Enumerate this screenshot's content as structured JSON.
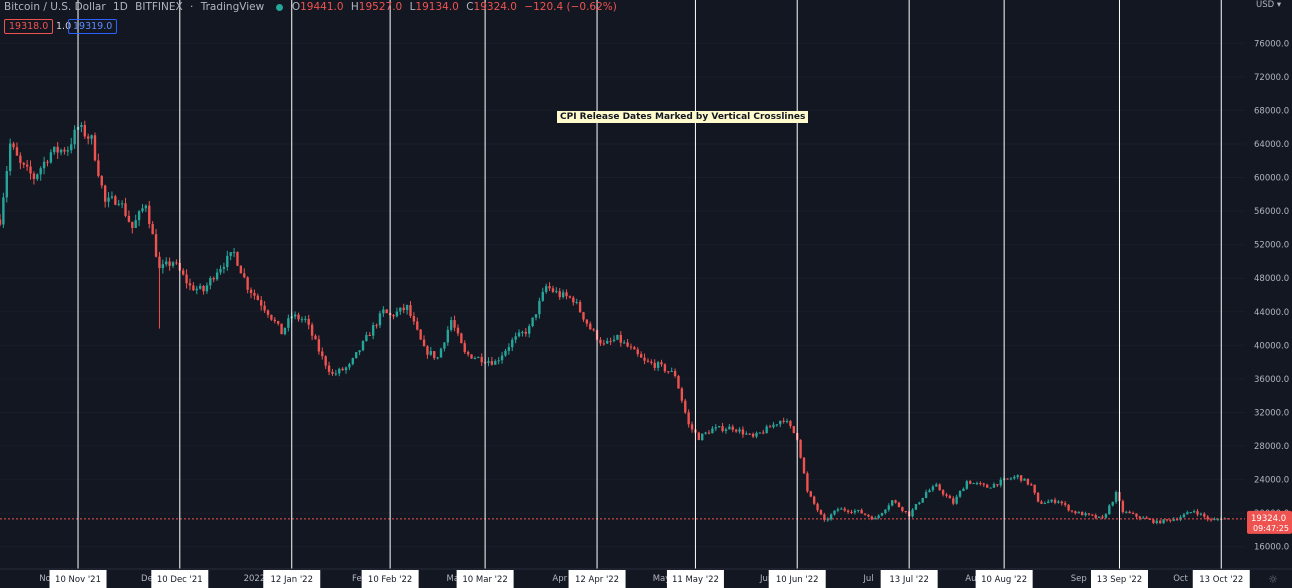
{
  "header": {
    "symbol": "Bitcoin / U.S. Dollar",
    "interval": "1D",
    "exchange": "BITFINEX",
    "source": "TradingView",
    "o_label": "O",
    "o_value": "19441.0",
    "h_label": "H",
    "h_value": "19527.0",
    "l_label": "L",
    "l_value": "19134.0",
    "c_label": "C",
    "c_value": "19324.0",
    "change": "−120.4 (−0.62%)",
    "bid_badge": "19318.0",
    "size_badge": "1.0",
    "ask_badge": "19319.0"
  },
  "colors": {
    "background": "#131722",
    "up": "#26a69a",
    "down": "#ef5350",
    "crossline": "#ffffff",
    "price_line": "#ef5350",
    "axis_text": "#b2b5be"
  },
  "chart_data": {
    "type": "candlestick",
    "currency": "USD",
    "price_scale": {
      "min": 14000,
      "max": 78000,
      "ticks": [
        16000,
        20000,
        24000,
        28000,
        32000,
        36000,
        40000,
        44000,
        48000,
        52000,
        56000,
        60000,
        64000,
        68000,
        72000,
        76000
      ],
      "tick_labels": [
        "16000.0",
        "20000.0",
        "24000.0",
        "28000.0",
        "32000.0",
        "36000.0",
        "40000.0",
        "44000.0",
        "48000.0",
        "52000.0",
        "56000.0",
        "60000.0",
        "64000.0",
        "68000.0",
        "72000.0",
        "76000.0"
      ]
    },
    "time_scale": {
      "start": "2021-10-18",
      "end": "2022-10-20"
    },
    "time_ticks": [
      {
        "date": "2021-11-01",
        "label": "Nov"
      },
      {
        "date": "2021-12-01",
        "label": "Dec"
      },
      {
        "date": "2022-01-01",
        "label": "2022"
      },
      {
        "date": "2022-02-01",
        "label": "Feb"
      },
      {
        "date": "2022-03-01",
        "label": "Mar"
      },
      {
        "date": "2022-04-01",
        "label": "Apr"
      },
      {
        "date": "2022-05-01",
        "label": "May"
      },
      {
        "date": "2022-06-01",
        "label": "Jun"
      },
      {
        "date": "2022-07-01",
        "label": "Jul"
      },
      {
        "date": "2022-08-01",
        "label": "Aug"
      },
      {
        "date": "2022-09-01",
        "label": "Sep"
      },
      {
        "date": "2022-10-01",
        "label": "Oct"
      }
    ],
    "crosslines": [
      {
        "date": "2021-11-10",
        "label": "10 Nov '21"
      },
      {
        "date": "2021-12-10",
        "label": "10 Dec '21"
      },
      {
        "date": "2022-01-12",
        "label": "12 Jan '22"
      },
      {
        "date": "2022-02-10",
        "label": "10 Feb '22"
      },
      {
        "date": "2022-03-10",
        "label": "10 Mar '22"
      },
      {
        "date": "2022-04-12",
        "label": "12 Apr '22"
      },
      {
        "date": "2022-05-11",
        "label": "11 May '22"
      },
      {
        "date": "2022-06-10",
        "label": "10 Jun '22"
      },
      {
        "date": "2022-07-13",
        "label": "13 Jul '22"
      },
      {
        "date": "2022-08-10",
        "label": "10 Aug '22"
      },
      {
        "date": "2022-09-13",
        "label": "13 Sep '22"
      },
      {
        "date": "2022-10-13",
        "label": "13 Oct '22"
      }
    ],
    "annotation": "CPI Release Dates Marked by Vertical Crosslines",
    "last_price": "19324.0",
    "countdown": "09:47:25",
    "price_keypoints": [
      [
        "2021-10-18",
        55000
      ],
      [
        "2021-10-21",
        64000
      ],
      [
        "2021-10-24",
        61500
      ],
      [
        "2021-10-28",
        60000
      ],
      [
        "2021-11-02",
        63000
      ],
      [
        "2021-11-07",
        63500
      ],
      [
        "2021-11-10",
        66000
      ],
      [
        "2021-11-14",
        64500
      ],
      [
        "2021-11-18",
        57000
      ],
      [
        "2021-11-22",
        57500
      ],
      [
        "2021-11-26",
        54000
      ],
      [
        "2021-11-30",
        57000
      ],
      [
        "2021-12-04",
        49000
      ],
      [
        "2021-12-08",
        50000
      ],
      [
        "2021-12-13",
        47000
      ],
      [
        "2021-12-17",
        46500
      ],
      [
        "2021-12-21",
        49000
      ],
      [
        "2021-12-26",
        51000
      ],
      [
        "2021-12-30",
        47000
      ],
      [
        "2022-01-05",
        44000
      ],
      [
        "2022-01-09",
        41500
      ],
      [
        "2022-01-12",
        43500
      ],
      [
        "2022-01-16",
        43000
      ],
      [
        "2022-01-21",
        38500
      ],
      [
        "2022-01-24",
        36500
      ],
      [
        "2022-01-29",
        37500
      ],
      [
        "2022-02-04",
        41500
      ],
      [
        "2022-02-08",
        44000
      ],
      [
        "2022-02-10",
        43500
      ],
      [
        "2022-02-15",
        44500
      ],
      [
        "2022-02-20",
        39500
      ],
      [
        "2022-02-24",
        38500
      ],
      [
        "2022-02-28",
        43000
      ],
      [
        "2022-03-04",
        39000
      ],
      [
        "2022-03-08",
        38500
      ],
      [
        "2022-03-13",
        38000
      ],
      [
        "2022-03-18",
        40500
      ],
      [
        "2022-03-23",
        42000
      ],
      [
        "2022-03-28",
        47000
      ],
      [
        "2022-04-01",
        46000
      ],
      [
        "2022-04-05",
        45500
      ],
      [
        "2022-04-10",
        42000
      ],
      [
        "2022-04-14",
        40000
      ],
      [
        "2022-04-18",
        40800
      ],
      [
        "2022-04-22",
        39500
      ],
      [
        "2022-04-26",
        38000
      ],
      [
        "2022-04-30",
        37600
      ],
      [
        "2022-05-05",
        36500
      ],
      [
        "2022-05-09",
        30500
      ],
      [
        "2022-05-12",
        29000
      ],
      [
        "2022-05-16",
        30000
      ],
      [
        "2022-05-22",
        30200
      ],
      [
        "2022-05-28",
        29000
      ],
      [
        "2022-06-01",
        30000
      ],
      [
        "2022-06-06",
        31300
      ],
      [
        "2022-06-10",
        29000
      ],
      [
        "2022-06-13",
        22500
      ],
      [
        "2022-06-18",
        19000
      ],
      [
        "2022-06-22",
        20500
      ],
      [
        "2022-06-28",
        20200
      ],
      [
        "2022-07-03",
        19300
      ],
      [
        "2022-07-08",
        21500
      ],
      [
        "2022-07-13",
        19800
      ],
      [
        "2022-07-18",
        22500
      ],
      [
        "2022-07-21",
        23200
      ],
      [
        "2022-07-26",
        21200
      ],
      [
        "2022-07-30",
        23800
      ],
      [
        "2022-08-05",
        23100
      ],
      [
        "2022-08-10",
        23900
      ],
      [
        "2022-08-14",
        24400
      ],
      [
        "2022-08-18",
        23300
      ],
      [
        "2022-08-20",
        21200
      ],
      [
        "2022-08-26",
        21500
      ],
      [
        "2022-08-30",
        20200
      ],
      [
        "2022-09-06",
        19500
      ],
      [
        "2022-09-08",
        19300
      ],
      [
        "2022-09-12",
        22300
      ],
      [
        "2022-09-14",
        20200
      ],
      [
        "2022-09-19",
        19500
      ],
      [
        "2022-09-24",
        18900
      ],
      [
        "2022-09-30",
        19400
      ],
      [
        "2022-10-05",
        20300
      ],
      [
        "2022-10-10",
        19100
      ],
      [
        "2022-10-13",
        19400
      ],
      [
        "2022-10-15",
        19324
      ]
    ]
  },
  "axis": {
    "currency_label": "USD",
    "settings_glyph": "☼"
  }
}
